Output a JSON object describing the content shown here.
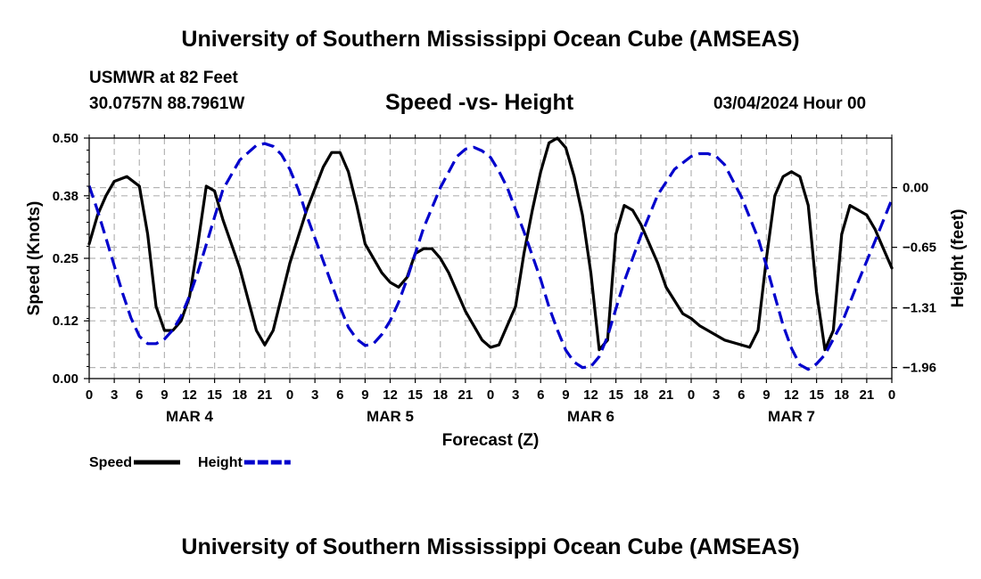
{
  "header": {
    "title": "University of Southern Mississippi Ocean Cube (AMSEAS)",
    "station": "USMWR at 82 Feet",
    "coords": "30.0757N  88.7961W",
    "subtitle": "Speed -vs- Height",
    "datetime": "03/04/2024 Hour 00"
  },
  "footer": {
    "title": "University of Southern Mississippi Ocean Cube (AMSEAS)"
  },
  "colors": {
    "speed": "#000000",
    "height": "#0000cc",
    "grid": "#b4b4b4"
  },
  "chart_data": {
    "type": "line",
    "title": "Speed -vs- Height",
    "xlabel": "Forecast (Z)",
    "ylabel": "Speed (Knots)",
    "y2label": "Height (feet)",
    "xlim": [
      0,
      96
    ],
    "ylim": [
      0,
      0.5
    ],
    "y2lim": [
      -2.08,
      0.54
    ],
    "x_tick_labels": [
      "0",
      "3",
      "6",
      "9",
      "12",
      "15",
      "18",
      "21",
      "0",
      "3",
      "6",
      "9",
      "12",
      "15",
      "18",
      "21",
      "0",
      "3",
      "6",
      "9",
      "12",
      "15",
      "18",
      "21",
      "0",
      "3",
      "6",
      "9",
      "12",
      "15",
      "18",
      "21",
      "0"
    ],
    "date_labels": [
      {
        "label": "MAR 4",
        "x": 12
      },
      {
        "label": "MAR 5",
        "x": 36
      },
      {
        "label": "MAR 6",
        "x": 60
      },
      {
        "label": "MAR 7",
        "x": 84
      }
    ],
    "y_ticks": [
      0.0,
      0.12,
      0.25,
      0.38,
      0.5
    ],
    "y_tick_labels": [
      "0.00",
      "0.12",
      "0.25",
      "0.38",
      "0.50"
    ],
    "y2_ticks": [
      0.0,
      -0.65,
      -1.31,
      -1.96
    ],
    "y2_tick_labels": [
      "0.00",
      "−0.65",
      "−1.31",
      "−1.96"
    ],
    "legend": [
      {
        "name": "Speed",
        "style": "solid"
      },
      {
        "name": "Height",
        "style": "dashed"
      }
    ],
    "series": [
      {
        "name": "Speed",
        "axis": "left",
        "x": [
          0,
          1,
          2,
          3,
          4.5,
          6,
          7,
          8,
          9,
          10,
          11,
          12,
          13,
          14,
          15,
          16,
          18,
          20,
          21,
          22,
          24,
          26,
          28,
          29,
          30,
          31,
          32,
          33,
          35,
          36,
          37,
          38,
          39,
          40,
          41,
          42,
          43,
          45,
          47,
          48,
          49,
          51,
          52,
          53,
          54,
          55,
          56,
          57,
          58,
          59,
          60,
          61,
          62,
          63,
          64,
          65,
          66,
          67,
          68,
          69,
          71,
          72,
          73,
          74,
          75,
          76,
          77,
          79,
          80,
          81,
          82,
          83,
          84,
          85,
          86,
          87,
          88,
          89,
          90,
          91,
          92,
          93,
          94,
          95,
          96
        ],
        "values": [
          0.28,
          0.34,
          0.38,
          0.41,
          0.42,
          0.4,
          0.3,
          0.15,
          0.1,
          0.1,
          0.12,
          0.17,
          0.28,
          0.4,
          0.39,
          0.33,
          0.23,
          0.1,
          0.07,
          0.1,
          0.24,
          0.35,
          0.44,
          0.47,
          0.47,
          0.43,
          0.36,
          0.28,
          0.22,
          0.2,
          0.19,
          0.21,
          0.26,
          0.27,
          0.27,
          0.25,
          0.22,
          0.14,
          0.08,
          0.065,
          0.07,
          0.15,
          0.26,
          0.35,
          0.43,
          0.49,
          0.5,
          0.48,
          0.42,
          0.34,
          0.22,
          0.06,
          0.08,
          0.3,
          0.36,
          0.35,
          0.32,
          0.28,
          0.24,
          0.19,
          0.135,
          0.125,
          0.11,
          0.1,
          0.09,
          0.08,
          0.075,
          0.065,
          0.1,
          0.25,
          0.38,
          0.42,
          0.43,
          0.42,
          0.36,
          0.18,
          0.06,
          0.1,
          0.3,
          0.36,
          0.35,
          0.34,
          0.31,
          0.27,
          0.23
        ]
      },
      {
        "name": "Height",
        "axis": "right",
        "x": [
          0,
          1,
          2,
          3,
          4,
          5,
          6,
          7,
          8,
          9,
          10,
          11,
          12,
          13,
          14,
          15,
          16,
          18,
          20,
          21,
          22,
          23,
          24,
          25,
          26,
          28,
          30,
          31,
          32,
          33,
          34,
          35,
          36,
          37,
          38,
          39,
          40,
          42,
          44,
          45,
          46,
          47,
          48,
          49,
          50,
          52,
          54,
          55,
          56,
          57,
          58,
          59,
          60,
          61,
          62,
          63,
          64,
          66,
          68,
          70,
          72,
          73,
          74,
          75,
          76,
          78,
          80,
          81,
          82,
          83,
          84,
          85,
          86,
          87,
          88,
          90,
          92,
          94,
          96
        ],
        "values": [
          0.02,
          -0.25,
          -0.55,
          -0.85,
          -1.15,
          -1.42,
          -1.62,
          -1.7,
          -1.7,
          -1.65,
          -1.55,
          -1.4,
          -1.18,
          -0.92,
          -0.62,
          -0.32,
          -0.02,
          0.3,
          0.46,
          0.48,
          0.45,
          0.36,
          0.2,
          -0.02,
          -0.3,
          -0.8,
          -1.3,
          -1.52,
          -1.65,
          -1.72,
          -1.7,
          -1.6,
          -1.45,
          -1.25,
          -1.0,
          -0.72,
          -0.44,
          0.0,
          0.34,
          0.42,
          0.44,
          0.4,
          0.33,
          0.18,
          0.0,
          -0.48,
          -1.0,
          -1.3,
          -1.55,
          -1.77,
          -1.9,
          -1.96,
          -1.95,
          -1.84,
          -1.62,
          -1.32,
          -1.02,
          -0.52,
          -0.08,
          0.2,
          0.34,
          0.37,
          0.37,
          0.34,
          0.25,
          -0.1,
          -0.55,
          -0.85,
          -1.18,
          -1.5,
          -1.75,
          -1.93,
          -1.98,
          -1.92,
          -1.82,
          -1.48,
          -1.02,
          -0.58,
          -0.13
        ]
      }
    ]
  }
}
